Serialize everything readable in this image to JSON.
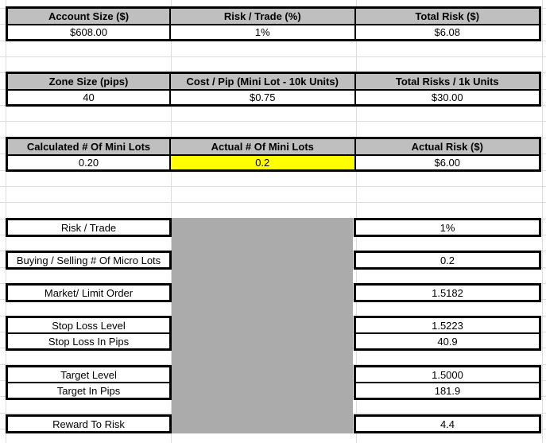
{
  "colors": {
    "header_bg": "#BFBFBF",
    "highlight": "#FFFF00",
    "filled_block": "#ABABAB",
    "border": "#000000",
    "gridline": "#DCDCDC"
  },
  "summary_tables": [
    {
      "columns": [
        {
          "header": "Account Size ($)",
          "value": "$608.00"
        },
        {
          "header": "Risk / Trade (%)",
          "value": "1%"
        },
        {
          "header": "Total Risk ($)",
          "value": "$6.08"
        }
      ]
    },
    {
      "columns": [
        {
          "header": "Zone Size (pips)",
          "value": "40"
        },
        {
          "header": "Cost / Pip (Mini Lot - 10k Units)",
          "value": "$0.75"
        },
        {
          "header": "Total Risks / 1k Units",
          "value": "$30.00"
        }
      ]
    },
    {
      "columns": [
        {
          "header": "Calculated # Of Mini Lots",
          "value": "0.20"
        },
        {
          "header": "Actual # Of Mini Lots",
          "value": "0.2",
          "highlighted": true
        },
        {
          "header": "Actual Risk ($)",
          "value": "$6.00"
        }
      ]
    }
  ],
  "detail_rows": [
    {
      "labels": [
        "Risk / Trade"
      ],
      "values": [
        "1%"
      ]
    },
    {
      "labels": [
        "Buying / Selling # Of Micro Lots"
      ],
      "values": [
        "0.2"
      ]
    },
    {
      "labels": [
        "Market/ Limit Order"
      ],
      "values": [
        "1.5182"
      ]
    },
    {
      "labels": [
        "Stop Loss Level",
        "Stop Loss In Pips"
      ],
      "values": [
        "1.5223",
        "40.9"
      ]
    },
    {
      "labels": [
        "Target Level",
        "Target In Pips"
      ],
      "values": [
        "1.5000",
        "181.9"
      ]
    },
    {
      "labels": [
        "Reward To Risk"
      ],
      "values": [
        "4.4"
      ]
    }
  ]
}
